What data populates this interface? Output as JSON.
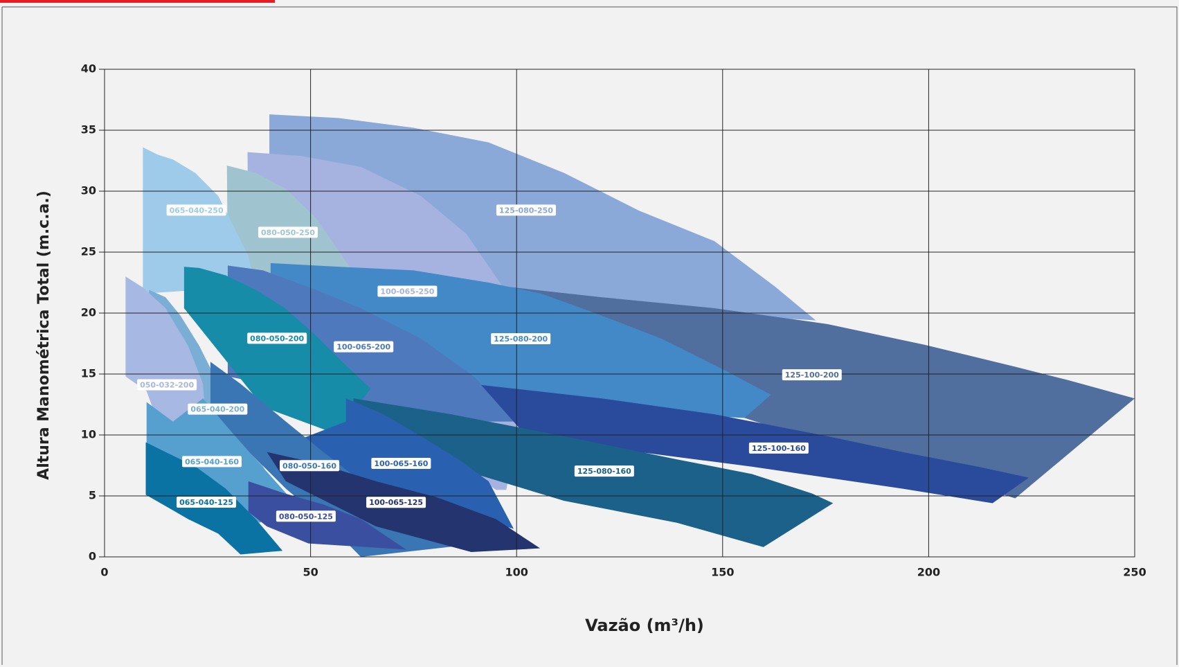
{
  "chart_data": {
    "type": "region",
    "xlabel": "Vazão (m³/h)",
    "ylabel": "Altura Manométrica Total (m.c.a.)",
    "xlim": [
      0,
      250
    ],
    "xticks": [
      0,
      50,
      100,
      150,
      200,
      250
    ],
    "ylim": [
      0,
      40
    ],
    "yticks": [
      0,
      5,
      10,
      15,
      20,
      25,
      30,
      35,
      40
    ],
    "grid": true,
    "series": [
      {
        "name": "125-080-250",
        "color": "#8aa8d8",
        "x": [
          40,
          56.8,
          75,
          93.2,
          111.5,
          129.7,
          148,
          162.6,
          172.6,
          96,
          40
        ],
        "y": [
          36.3,
          36,
          35.2,
          34,
          31.5,
          28.4,
          25.9,
          22.2,
          19.4,
          21,
          23
        ]
      },
      {
        "name": "100-065-250",
        "color": "#a6b2df",
        "x": [
          34.7,
          47.6,
          62.2,
          76.8,
          87.8,
          97.8,
          100.5,
          97.5,
          95,
          35
        ],
        "y": [
          33.2,
          32.9,
          32,
          29.6,
          26.5,
          21.6,
          11.1,
          5.5,
          5.5,
          20
        ]
      },
      {
        "name": "080-050-250",
        "color": "#9fc4cf",
        "x": [
          29.7,
          36.7,
          44,
          51.3,
          59.5,
          60.4,
          30
        ],
        "y": [
          32.1,
          31.5,
          30.2,
          27.8,
          23.8,
          21,
          20
        ]
      },
      {
        "name": "065-040-250",
        "color": "#9fcbea",
        "x": [
          9.3,
          12.9,
          16.6,
          22,
          27.6,
          31.2,
          34.9,
          36.7,
          9.3
        ],
        "y": [
          33.6,
          33,
          32.6,
          31.5,
          29.6,
          27.2,
          24.7,
          22.2,
          21.6
        ]
      },
      {
        "name": "125-100-200",
        "color": "#506e9e",
        "x": [
          96.5,
          120.6,
          148,
          175.4,
          199,
          221,
          233.8,
          250,
          221,
          193.6,
          166.2,
          155.3,
          120.6,
          102.4
        ],
        "y": [
          22.2,
          21.3,
          20.4,
          19.1,
          17.4,
          15.6,
          14.5,
          13,
          4.8,
          7.7,
          10.2,
          11.4,
          14.8,
          16.7
        ]
      },
      {
        "name": "125-080-200",
        "color": "#4389c8",
        "x": [
          40.3,
          56.8,
          75,
          93.2,
          106,
          120.6,
          135.2,
          150,
          161.7,
          155.3,
          120.6,
          93.2,
          65.9,
          40.3
        ],
        "y": [
          24.1,
          23.8,
          23.5,
          22.5,
          21.6,
          19.8,
          17.9,
          15.4,
          13.3,
          11.4,
          12,
          13.9,
          15.4,
          16
        ]
      },
      {
        "name": "100-065-200",
        "color": "#4e79bd",
        "x": [
          29.9,
          38.5,
          51.3,
          62.2,
          76.8,
          89.6,
          100.5,
          93.2,
          56.8,
          29.9
        ],
        "y": [
          23.9,
          23.5,
          21.9,
          20.4,
          17.9,
          14.8,
          11.1,
          11.1,
          13,
          14.8
        ]
      },
      {
        "name": "080-050-200",
        "color": "#168ca8",
        "x": [
          19.3,
          23,
          29.4,
          36.7,
          43.8,
          51.1,
          58.6,
          64.6,
          60.4,
          57.7,
          38.5,
          19.3
        ],
        "y": [
          23.8,
          23.7,
          23.1,
          21.9,
          20.4,
          18.2,
          15.7,
          13.8,
          12,
          9.9,
          12.3,
          20.4
        ]
      },
      {
        "name": "065-040-200",
        "color": "#7aaed4",
        "x": [
          10.8,
          14.8,
          18.4,
          23,
          27.6,
          33,
          38.5,
          42.9,
          46.2,
          37.6,
          25.7,
          10.8
        ],
        "y": [
          21.9,
          21.3,
          19.8,
          17.3,
          14.2,
          10.5,
          7.4,
          4.9,
          4.4,
          2.8,
          7.4,
          13.6
        ]
      },
      {
        "name": "050-032-200",
        "color": "#a7b8e2",
        "x": [
          5.1,
          9.3,
          14.8,
          20.3,
          23.9,
          24.3,
          20.3,
          18.4,
          14.8,
          10.2,
          5.1
        ],
        "y": [
          23,
          22.1,
          20.4,
          17.3,
          14.2,
          12.3,
          3.4,
          4.9,
          9.3,
          13.6,
          14.8
        ]
      },
      {
        "name": "125-100-160",
        "color": "#2a4b9b",
        "x": [
          91.4,
          120.6,
          148,
          175.4,
          193.6,
          211.9,
          224.3,
          215.5,
          193.6,
          157.1,
          129.7,
          102.4
        ],
        "y": [
          14.1,
          13,
          11.7,
          9.9,
          8.6,
          7.4,
          6.5,
          4.4,
          5.6,
          7.4,
          8.6,
          9.9
        ]
      },
      {
        "name": "125-080-160",
        "color": "#1c6189",
        "x": [
          60.4,
          84.1,
          111.5,
          138.9,
          157.1,
          171.7,
          176.8,
          159.9,
          138.9,
          111.5,
          84.1,
          60.4
        ],
        "y": [
          13,
          11.7,
          9.9,
          8,
          6.8,
          5.2,
          4.4,
          0.8,
          2.8,
          4.6,
          7.4,
          9.9
        ]
      },
      {
        "name": "100-065-160",
        "color": "#2961b0",
        "x": [
          58.6,
          67.7,
          76.8,
          85.9,
          93.2,
          99.3,
          91.4,
          73.2,
          47.6,
          39.4,
          58.6
        ],
        "y": [
          13,
          11.7,
          9.9,
          8,
          6.2,
          2.3,
          3.1,
          4.3,
          6.2,
          8.6,
          11.1
        ]
      },
      {
        "name": "080-050-160",
        "color": "#3a76b4",
        "x": [
          25.7,
          33,
          44,
          53.1,
          62.2,
          73.2,
          85.9,
          62.2,
          54.9,
          44,
          33,
          25.7
        ],
        "y": [
          16,
          14.2,
          11.1,
          8.6,
          6.2,
          3.1,
          0.9,
          0,
          2.5,
          5.6,
          9.3,
          12.3
        ]
      },
      {
        "name": "065-040-160",
        "color": "#56a0cf",
        "x": [
          10.2,
          16.6,
          23.9,
          29.4,
          36.7,
          46.2,
          37.6,
          29.4,
          20.3,
          10.2
        ],
        "y": [
          12.7,
          11.1,
          13,
          10.8,
          8,
          4.4,
          2.8,
          4.9,
          3.1,
          7.4
        ]
      },
      {
        "name": "100-065-125",
        "color": "#23346f",
        "x": [
          39.4,
          51.3,
          65.9,
          80.5,
          95,
          105.7,
          89,
          65.9,
          44
        ],
        "y": [
          8.6,
          7.7,
          6.2,
          4.9,
          3.1,
          0.7,
          0.4,
          2.5,
          6.2
        ]
      },
      {
        "name": "080-050-125",
        "color": "#3a4fa0",
        "x": [
          34.9,
          43.8,
          53.1,
          62.2,
          73.2,
          49.5,
          39.4,
          34.9
        ],
        "y": [
          6.2,
          5.2,
          4.3,
          3.1,
          0.6,
          1.1,
          2.5,
          3.7
        ]
      },
      {
        "name": "065-040-125",
        "color": "#0b72a4",
        "x": [
          10,
          14.8,
          22.1,
          29.4,
          36.7,
          43.2,
          33,
          27.6,
          20.3,
          10
        ],
        "y": [
          9.4,
          8.6,
          7.4,
          5.6,
          3.1,
          0.5,
          0.2,
          1.9,
          3.1,
          5.1
        ]
      }
    ]
  }
}
